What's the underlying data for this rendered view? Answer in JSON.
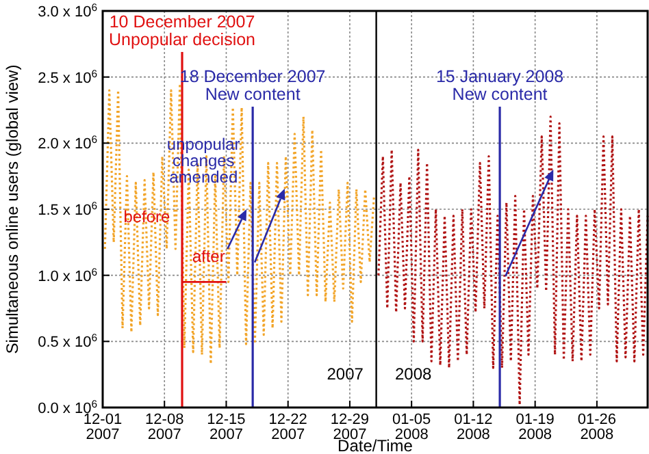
{
  "chart_data": {
    "type": "line",
    "xlabel": "Date/Time",
    "ylabel": "Simultaneous online users (global view)",
    "xlim": [
      "2007-12-01",
      "2008-01-31T18:00"
    ],
    "xticks": [
      {
        "value": "2007-12-01",
        "label": "12-01\n2007"
      },
      {
        "value": "2007-12-08",
        "label": "12-08\n2007"
      },
      {
        "value": "2007-12-15",
        "label": "12-15\n2007"
      },
      {
        "value": "2007-12-22",
        "label": "12-22\n2007"
      },
      {
        "value": "2007-12-29",
        "label": "12-29\n2007"
      },
      {
        "value": "2008-01-05",
        "label": "01-05\n2008"
      },
      {
        "value": "2008-01-12",
        "label": "01-12\n2008"
      },
      {
        "value": "2008-01-19",
        "label": "01-19\n2008"
      },
      {
        "value": "2008-01-26",
        "label": "01-26\n2008"
      }
    ],
    "ylim": [
      0,
      3000000
    ],
    "yticks": [
      {
        "value": 0,
        "label": "0.0 x 10$^{6}$"
      },
      {
        "value": 500000,
        "label": "0.5 x 10$^{6}$"
      },
      {
        "value": 1000000,
        "label": "1.0 x 10$^{6}$"
      },
      {
        "value": 1500000,
        "label": "1.5 x 10$^{6}$"
      },
      {
        "value": 2000000,
        "label": "2.0 x 10$^{6}$"
      },
      {
        "value": 2500000,
        "label": "2.5 x 10$^{6}$"
      },
      {
        "value": 3000000,
        "label": "3.0 x 10$^{6}$"
      }
    ],
    "grid": true,
    "line_style": "dotted",
    "series": [
      {
        "color": "#f2a52a",
        "x": [
          "2007-12-01T06:00",
          "2007-12-01T18:00",
          "2007-12-02T06:00",
          "2007-12-02T18:00",
          "2007-12-03T06:00",
          "2007-12-03T18:00",
          "2007-12-04T06:00",
          "2007-12-04T18:00",
          "2007-12-05T06:00",
          "2007-12-05T18:00",
          "2007-12-06T06:00",
          "2007-12-06T18:00",
          "2007-12-07T06:00",
          "2007-12-07T18:00",
          "2007-12-08T06:00",
          "2007-12-08T18:00",
          "2007-12-09T06:00",
          "2007-12-09T18:00",
          "2007-12-10T06:00",
          "2007-12-10T18:00",
          "2007-12-11T06:00",
          "2007-12-11T18:00",
          "2007-12-12T06:00",
          "2007-12-12T18:00",
          "2007-12-13T06:00",
          "2007-12-13T18:00",
          "2007-12-14T06:00",
          "2007-12-14T18:00",
          "2007-12-15T06:00",
          "2007-12-15T18:00",
          "2007-12-16T06:00",
          "2007-12-16T18:00",
          "2007-12-17T06:00",
          "2007-12-17T18:00",
          "2007-12-18T06:00",
          "2007-12-18T18:00",
          "2007-12-19T06:00",
          "2007-12-19T18:00",
          "2007-12-20T06:00",
          "2007-12-20T18:00",
          "2007-12-21T06:00",
          "2007-12-21T18:00",
          "2007-12-22T06:00",
          "2007-12-22T18:00",
          "2007-12-23T06:00",
          "2007-12-23T18:00",
          "2007-12-24T06:00",
          "2007-12-24T18:00",
          "2007-12-25T06:00",
          "2007-12-25T18:00",
          "2007-12-26T06:00",
          "2007-12-26T18:00",
          "2007-12-27T06:00",
          "2007-12-27T18:00",
          "2007-12-28T06:00",
          "2007-12-28T18:00",
          "2007-12-29T06:00",
          "2007-12-29T18:00",
          "2007-12-30T06:00",
          "2007-12-30T18:00",
          "2007-12-31T06:00",
          "2007-12-31T18:00"
        ],
        "values": [
          1200000,
          2400000,
          1250000,
          2400000,
          600000,
          1750000,
          570000,
          1700000,
          620000,
          1720000,
          750000,
          1780000,
          700000,
          1900000,
          1200000,
          2400000,
          1200000,
          2450000,
          450000,
          1800000,
          420000,
          1850000,
          400000,
          1900000,
          330000,
          1750000,
          450000,
          1900000,
          950000,
          2270000,
          1000000,
          2270000,
          480000,
          1700000,
          500000,
          1700000,
          550000,
          1850000,
          600000,
          1850000,
          650000,
          1900000,
          1000000,
          2070000,
          1000000,
          2200000,
          850000,
          2100000,
          850000,
          1950000,
          800000,
          1550000,
          800000,
          1650000,
          900000,
          1700000,
          650000,
          1650000,
          950000,
          1650000,
          1100000,
          1600000
        ]
      },
      {
        "color": "#b01414",
        "x": [
          "2008-01-01T06:00",
          "2008-01-01T18:00",
          "2008-01-02T06:00",
          "2008-01-02T18:00",
          "2008-01-03T06:00",
          "2008-01-03T18:00",
          "2008-01-04T06:00",
          "2008-01-04T18:00",
          "2008-01-05T06:00",
          "2008-01-05T18:00",
          "2008-01-06T06:00",
          "2008-01-06T18:00",
          "2008-01-07T06:00",
          "2008-01-07T18:00",
          "2008-01-08T06:00",
          "2008-01-08T18:00",
          "2008-01-09T06:00",
          "2008-01-09T18:00",
          "2008-01-10T06:00",
          "2008-01-10T18:00",
          "2008-01-11T06:00",
          "2008-01-11T18:00",
          "2008-01-12T06:00",
          "2008-01-12T18:00",
          "2008-01-13T06:00",
          "2008-01-13T18:00",
          "2008-01-14T06:00",
          "2008-01-14T18:00",
          "2008-01-15T06:00",
          "2008-01-15T18:00",
          "2008-01-16T06:00",
          "2008-01-16T18:00",
          "2008-01-17T06:00",
          "2008-01-17T18:00",
          "2008-01-18T06:00",
          "2008-01-18T18:00",
          "2008-01-19T06:00",
          "2008-01-19T18:00",
          "2008-01-20T06:00",
          "2008-01-20T18:00",
          "2008-01-21T06:00",
          "2008-01-21T18:00",
          "2008-01-22T06:00",
          "2008-01-22T18:00",
          "2008-01-23T06:00",
          "2008-01-23T18:00",
          "2008-01-24T06:00",
          "2008-01-24T18:00",
          "2008-01-25T06:00",
          "2008-01-25T18:00",
          "2008-01-26T06:00",
          "2008-01-26T18:00",
          "2008-01-27T06:00",
          "2008-01-27T18:00",
          "2008-01-28T06:00",
          "2008-01-28T18:00",
          "2008-01-29T06:00",
          "2008-01-29T18:00",
          "2008-01-30T06:00",
          "2008-01-30T18:00",
          "2008-01-31T06:00",
          "2008-01-31T18:00"
        ],
        "values": [
          1000000,
          1900000,
          750000,
          1950000,
          720000,
          1700000,
          750000,
          1750000,
          500000,
          1950000,
          500000,
          1850000,
          350000,
          1500000,
          320000,
          1450000,
          300000,
          1450000,
          350000,
          1500000,
          400000,
          1500000,
          720000,
          1850000,
          750000,
          1900000,
          300000,
          1450000,
          300000,
          1550000,
          350000,
          1600000,
          20000,
          1500000,
          400000,
          1600000,
          900000,
          2050000,
          880000,
          2200000,
          400000,
          2150000,
          360000,
          1500000,
          350000,
          1450000,
          350000,
          1450000,
          400000,
          1500000,
          750000,
          2050000,
          780000,
          2050000,
          350000,
          1500000,
          380000,
          1450000,
          350000,
          1500000,
          400000,
          1450000
        ]
      },
      {
        "type": "line",
        "line_style": "solid",
        "color": "#e01010",
        "x": [
          "2007-12-10",
          "2007-12-15"
        ],
        "values": [
          950000,
          950000
        ]
      }
    ],
    "ref_lines": [
      {
        "axis": "x",
        "value": "2007-12-10",
        "label": "10 December 2007\nUnpopular decision",
        "color": "#e01010"
      },
      {
        "axis": "x",
        "value": "2007-12-18",
        "label": "18 December 2007\nNew content",
        "color": "#2a2aa8"
      },
      {
        "axis": "x",
        "value": "2008-01-15",
        "label": "15 January 2008\nNew content",
        "color": "#2a2aa8"
      },
      {
        "axis": "x",
        "value": "2008-01-01",
        "color": "#000000"
      }
    ],
    "annotations": [
      {
        "text": "before",
        "x": "2007-12-06",
        "y": 1400000
      },
      {
        "text": "after",
        "x": "2007-12-13",
        "y": 1100000
      },
      "unpopular\nchanges\namended",
      "2007",
      "2008"
    ]
  }
}
